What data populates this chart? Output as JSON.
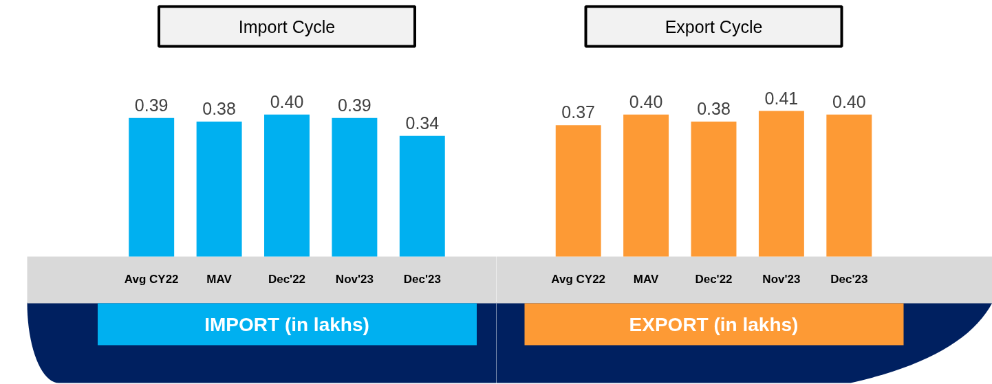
{
  "chart_data": [
    {
      "type": "bar",
      "title": "Import Cycle",
      "xlabel": "IMPORT (in lakhs)",
      "categories": [
        "Avg CY22",
        "MAV",
        "Dec'22",
        "Nov'23",
        "Dec'23"
      ],
      "values": [
        0.39,
        0.38,
        0.4,
        0.39,
        0.34
      ],
      "value_labels": [
        "0.39",
        "0.38",
        "0.40",
        "0.39",
        "0.34"
      ],
      "color": "#00b0f0",
      "tick_labels": "x"
    },
    {
      "type": "bar",
      "title": "Export Cycle",
      "xlabel": "EXPORT (in lakhs)",
      "categories": [
        "Avg CY22",
        "MAV",
        "Dec'22",
        "Nov'23",
        "Dec'23"
      ],
      "values": [
        0.37,
        0.4,
        0.38,
        0.41,
        0.4
      ],
      "value_labels": [
        "0.37",
        "0.40",
        "0.38",
        "0.41",
        "0.40"
      ],
      "color": "#fd9a35",
      "tick_labels": "x"
    }
  ]
}
